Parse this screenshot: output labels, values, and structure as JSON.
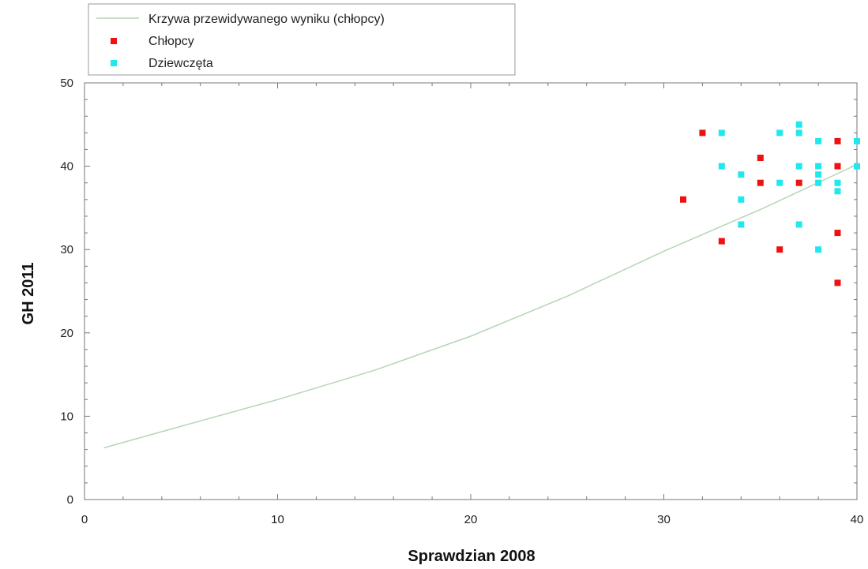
{
  "chart_data": {
    "type": "scatter",
    "xlabel": "Sprawdzian 2008",
    "ylabel": "GH 2011",
    "xlim": [
      0,
      40
    ],
    "ylim": [
      0,
      50
    ],
    "xticks": [
      0,
      10,
      20,
      30,
      40
    ],
    "yticks": [
      0,
      10,
      20,
      30,
      40,
      50
    ],
    "grid": false,
    "legend_placement": "top-left",
    "curve": {
      "name": "Krzywa przewidywanego wyniku (chłopcy)",
      "color": "#b5d6b5",
      "x": [
        1,
        5,
        10,
        15,
        20,
        25,
        30,
        35,
        40
      ],
      "y": [
        6.2,
        8.8,
        12.0,
        15.5,
        19.6,
        24.4,
        29.8,
        34.8,
        40.2
      ]
    },
    "series": [
      {
        "name": "Chłopcy",
        "color": "#ee1111",
        "points": [
          [
            31,
            36
          ],
          [
            32,
            44
          ],
          [
            33,
            31
          ],
          [
            35,
            41
          ],
          [
            35,
            38
          ],
          [
            36,
            30
          ],
          [
            37,
            38
          ],
          [
            39,
            43
          ],
          [
            39,
            40
          ],
          [
            39,
            32
          ],
          [
            39,
            26
          ]
        ]
      },
      {
        "name": "Dziewczęta",
        "color": "#22e8ee",
        "points": [
          [
            33,
            44
          ],
          [
            33,
            40
          ],
          [
            34,
            39
          ],
          [
            34,
            36
          ],
          [
            34,
            33
          ],
          [
            36,
            44
          ],
          [
            36,
            38
          ],
          [
            37,
            45
          ],
          [
            37,
            44
          ],
          [
            37,
            40
          ],
          [
            37,
            33
          ],
          [
            38,
            43
          ],
          [
            38,
            40
          ],
          [
            38,
            39
          ],
          [
            38,
            38
          ],
          [
            38,
            30
          ],
          [
            39,
            38
          ],
          [
            39,
            37
          ],
          [
            40,
            43
          ],
          [
            40,
            40
          ]
        ]
      }
    ]
  }
}
